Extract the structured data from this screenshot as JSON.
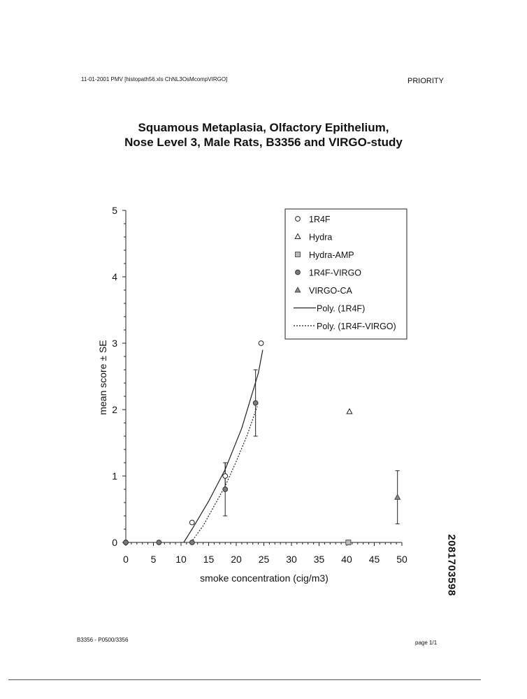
{
  "header": {
    "left_text": "11-01-2001 PMV [histopath56.xls ChNL3OsMcompVIRGO]",
    "right_text": "PRIORITY"
  },
  "title": {
    "line1": "Squamous Metaplasia, Olfactory Epithelium,",
    "line2": "Nose Level 3, Male Rats, B3356 and VIRGO-study"
  },
  "footer": {
    "left_text": "B3356 - P0500/3356",
    "right_text": "page 1/1"
  },
  "stamp": {
    "text": "2081703598"
  },
  "chart_data": {
    "type": "scatter",
    "title": "Squamous Metaplasia, Olfactory Epithelium, Nose Level 3, Male Rats, B3356 and VIRGO-study",
    "xlabel": "smoke concentration (cig/m3)",
    "ylabel": "mean score ± SE",
    "xlim": [
      0,
      50
    ],
    "ylim": [
      0,
      5
    ],
    "x_ticks": [
      0,
      5,
      10,
      15,
      20,
      25,
      30,
      35,
      40,
      45,
      50
    ],
    "y_ticks": [
      0,
      1,
      2,
      3,
      4,
      5
    ],
    "grid": false,
    "legend_position": "top-right",
    "series": [
      {
        "name": "1R4F",
        "marker": "open-circle",
        "points": [
          {
            "x": 0,
            "y": 0
          },
          {
            "x": 12,
            "y": 0.3
          },
          {
            "x": 18,
            "y": 1.0,
            "err": 0.2
          },
          {
            "x": 24.5,
            "y": 3.0
          }
        ]
      },
      {
        "name": "Hydra",
        "marker": "open-triangle",
        "points": [
          {
            "x": 40.5,
            "y": 1.97
          }
        ]
      },
      {
        "name": "Hydra-AMP",
        "marker": "hatched-square",
        "points": [
          {
            "x": 40.3,
            "y": 0
          }
        ]
      },
      {
        "name": "1R4F-VIRGO",
        "marker": "grey-circle",
        "points": [
          {
            "x": 0,
            "y": 0
          },
          {
            "x": 6,
            "y": 0
          },
          {
            "x": 12,
            "y": 0
          },
          {
            "x": 18,
            "y": 0.8,
            "err": 0.4
          },
          {
            "x": 23.5,
            "y": 2.1,
            "err": 0.5
          }
        ]
      },
      {
        "name": "VIRGO-CA",
        "marker": "grey-triangle",
        "points": [
          {
            "x": 49.2,
            "y": 0.68,
            "err": 0.4
          }
        ]
      },
      {
        "name": "Poly. (1R4F)",
        "style": "solid-line",
        "points": [
          {
            "x": 10.5,
            "y": 0
          },
          {
            "x": 12,
            "y": 0.2
          },
          {
            "x": 15,
            "y": 0.62
          },
          {
            "x": 18,
            "y": 1.1
          },
          {
            "x": 21,
            "y": 1.72
          },
          {
            "x": 24,
            "y": 2.55
          },
          {
            "x": 24.8,
            "y": 2.9
          }
        ]
      },
      {
        "name": "Poly. (1R4F-VIRGO)",
        "style": "dotted-line",
        "points": [
          {
            "x": 11.8,
            "y": 0
          },
          {
            "x": 14,
            "y": 0.25
          },
          {
            "x": 16,
            "y": 0.55
          },
          {
            "x": 18,
            "y": 0.85
          },
          {
            "x": 20,
            "y": 1.22
          },
          {
            "x": 22,
            "y": 1.62
          },
          {
            "x": 23.8,
            "y": 2.05
          }
        ]
      }
    ]
  }
}
